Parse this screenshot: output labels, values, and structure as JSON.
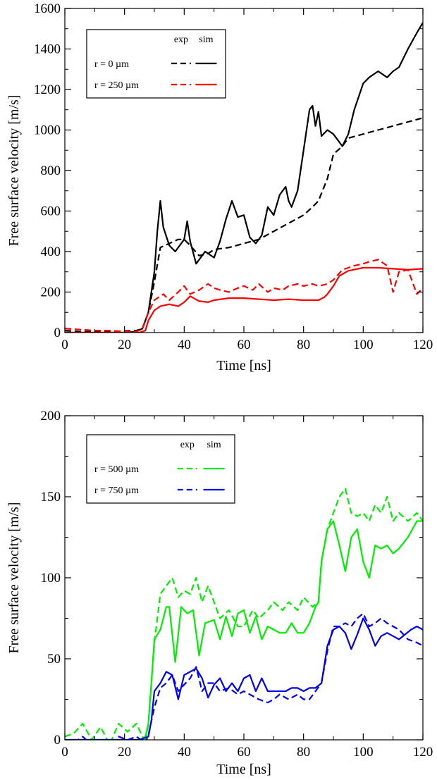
{
  "chart_data": [
    {
      "type": "line",
      "xlabel": "Time [ns]",
      "ylabel": "Free surface velocity [m/s]",
      "xlim": [
        0,
        120
      ],
      "ylim": [
        0,
        1600
      ],
      "xticks": [
        0,
        20,
        40,
        60,
        80,
        100,
        120
      ],
      "yticks": [
        0,
        200,
        400,
        600,
        800,
        1000,
        1200,
        1400,
        1600
      ],
      "grid": false,
      "legend": {
        "placement": "top-left",
        "col_headers": [
          "exp",
          "sim"
        ],
        "rows": [
          {
            "label": "r = 0 µm",
            "color": "#000000"
          },
          {
            "label": "r = 250 µm",
            "color": "#ff0000"
          }
        ]
      },
      "series": [
        {
          "name": "r = 0 µm exp",
          "color": "#000000",
          "dash": true,
          "x": [
            0,
            5,
            10,
            15,
            20,
            24,
            26,
            28,
            30,
            32,
            35,
            38,
            40,
            42,
            45,
            48,
            50,
            55,
            60,
            65,
            70,
            75,
            80,
            83,
            85,
            88,
            90,
            93,
            95,
            100,
            105,
            110,
            115,
            120
          ],
          "y": [
            10,
            5,
            5,
            5,
            8,
            10,
            20,
            100,
            250,
            420,
            440,
            460,
            460,
            430,
            380,
            390,
            410,
            420,
            440,
            460,
            500,
            540,
            580,
            620,
            650,
            760,
            880,
            920,
            960,
            980,
            1000,
            1020,
            1040,
            1060
          ]
        },
        {
          "name": "r = 0 µm sim",
          "color": "#000000",
          "dash": false,
          "x": [
            0,
            5,
            10,
            15,
            20,
            24,
            26,
            28,
            30,
            31,
            32,
            33,
            35,
            37,
            40,
            41,
            42,
            44,
            47,
            50,
            52,
            54,
            56,
            58,
            60,
            62,
            64,
            66,
            68,
            70,
            72,
            74,
            75,
            76,
            78,
            80,
            82,
            83,
            84,
            85,
            86,
            88,
            90,
            92,
            93,
            95,
            97,
            100,
            102,
            105,
            108,
            110,
            112,
            115,
            118,
            120
          ],
          "y": [
            0,
            0,
            0,
            0,
            0,
            5,
            20,
            100,
            300,
            500,
            650,
            520,
            430,
            400,
            460,
            550,
            450,
            340,
            400,
            370,
            450,
            560,
            650,
            570,
            580,
            470,
            440,
            480,
            620,
            580,
            680,
            720,
            650,
            620,
            700,
            900,
            1100,
            1120,
            1020,
            1090,
            970,
            1000,
            980,
            940,
            920,
            980,
            1100,
            1230,
            1260,
            1290,
            1260,
            1290,
            1310,
            1400,
            1480,
            1530
          ]
        },
        {
          "name": "r = 250 µm exp",
          "color": "#ff0000",
          "dash": true,
          "x": [
            0,
            5,
            10,
            15,
            20,
            24,
            26,
            28,
            30,
            33,
            35,
            38,
            40,
            42,
            45,
            48,
            50,
            52,
            55,
            58,
            60,
            63,
            65,
            68,
            70,
            73,
            75,
            78,
            80,
            83,
            85,
            88,
            90,
            93,
            95,
            97,
            100,
            102,
            105,
            108,
            110,
            112,
            115,
            118,
            120
          ],
          "y": [
            20,
            15,
            10,
            10,
            5,
            5,
            20,
            100,
            160,
            190,
            160,
            200,
            230,
            190,
            210,
            240,
            220,
            210,
            200,
            220,
            230,
            210,
            240,
            200,
            220,
            210,
            230,
            240,
            230,
            240,
            230,
            240,
            260,
            310,
            320,
            330,
            340,
            350,
            360,
            330,
            200,
            300,
            310,
            190,
            220
          ]
        },
        {
          "name": "r = 250 µm sim",
          "color": "#ff0000",
          "dash": false,
          "x": [
            0,
            20,
            25,
            27,
            28,
            30,
            32,
            35,
            38,
            40,
            42,
            45,
            48,
            50,
            55,
            60,
            65,
            70,
            75,
            80,
            85,
            87,
            88,
            90,
            92,
            95,
            100,
            105,
            110,
            115,
            120
          ],
          "y": [
            0,
            0,
            0,
            10,
            60,
            110,
            130,
            140,
            130,
            150,
            180,
            155,
            150,
            160,
            170,
            170,
            165,
            160,
            165,
            160,
            160,
            175,
            190,
            230,
            280,
            305,
            320,
            320,
            315,
            310,
            315
          ]
        }
      ]
    },
    {
      "type": "line",
      "xlabel": "Time [ns]",
      "ylabel": "Free surface velocity [m/s]",
      "xlim": [
        0,
        120
      ],
      "ylim": [
        0,
        200
      ],
      "xticks": [
        0,
        20,
        40,
        60,
        80,
        100,
        120
      ],
      "yticks": [
        0,
        50,
        100,
        150,
        200
      ],
      "grid": false,
      "legend": {
        "placement": "top-left",
        "col_headers": [
          "exp",
          "sim"
        ],
        "rows": [
          {
            "label": "r = 500 µm",
            "color": "#00ee00"
          },
          {
            "label": "r = 750 µm",
            "color": "#0000ee"
          }
        ]
      },
      "series": [
        {
          "name": "r = 500 µm exp",
          "color": "#00ee00",
          "dash": true,
          "x": [
            0,
            3,
            6,
            9,
            12,
            15,
            18,
            21,
            24,
            27,
            28,
            30,
            32,
            34,
            36,
            38,
            40,
            42,
            44,
            46,
            48,
            50,
            52,
            55,
            58,
            60,
            63,
            65,
            68,
            70,
            73,
            75,
            78,
            80,
            83,
            85,
            86,
            88,
            90,
            92,
            94,
            96,
            98,
            100,
            102,
            104,
            106,
            108,
            110,
            112,
            115,
            118,
            120
          ],
          "y": [
            2,
            4,
            10,
            0,
            8,
            -3,
            10,
            5,
            10,
            -2,
            10,
            60,
            90,
            95,
            100,
            88,
            92,
            90,
            100,
            85,
            95,
            85,
            75,
            80,
            70,
            70,
            80,
            75,
            80,
            85,
            80,
            85,
            80,
            88,
            82,
            85,
            110,
            130,
            140,
            150,
            155,
            140,
            138,
            140,
            135,
            145,
            140,
            150,
            135,
            140,
            135,
            140,
            135
          ]
        },
        {
          "name": "r = 500 µm sim",
          "color": "#00ee00",
          "dash": false,
          "x": [
            0,
            10,
            20,
            25,
            27,
            28,
            29,
            30,
            32,
            34,
            35,
            37,
            39,
            41,
            43,
            45,
            47,
            50,
            52,
            54,
            56,
            58,
            60,
            62,
            64,
            66,
            68,
            70,
            72,
            74,
            76,
            78,
            80,
            82,
            84,
            85,
            86,
            88,
            90,
            92,
            94,
            96,
            98,
            100,
            102,
            104,
            106,
            108,
            110,
            112,
            115,
            118,
            120
          ],
          "y": [
            0,
            0,
            0,
            0,
            2,
            10,
            35,
            62,
            68,
            82,
            82,
            48,
            82,
            78,
            80,
            52,
            72,
            74,
            62,
            76,
            64,
            78,
            80,
            66,
            76,
            62,
            70,
            68,
            66,
            66,
            72,
            66,
            66,
            72,
            82,
            85,
            110,
            130,
            135,
            120,
            104,
            125,
            130,
            110,
            100,
            120,
            118,
            120,
            115,
            118,
            125,
            135,
            135
          ]
        },
        {
          "name": "r = 750 µm exp",
          "color": "#0000ee",
          "dash": true,
          "x": [
            0,
            3,
            6,
            9,
            12,
            15,
            18,
            21,
            24,
            27,
            28,
            30,
            32,
            34,
            36,
            38,
            40,
            42,
            44,
            46,
            48,
            50,
            52,
            55,
            58,
            60,
            62,
            65,
            68,
            70,
            72,
            75,
            78,
            80,
            82,
            84,
            86,
            88,
            90,
            92,
            94,
            96,
            98,
            100,
            102,
            104,
            106,
            108,
            110,
            112,
            115,
            118,
            120
          ],
          "y": [
            0,
            -2,
            2,
            -3,
            0,
            -5,
            2,
            0,
            2,
            -2,
            3,
            20,
            32,
            35,
            40,
            30,
            34,
            38,
            45,
            30,
            35,
            35,
            30,
            32,
            28,
            30,
            28,
            25,
            23,
            25,
            28,
            25,
            28,
            25,
            25,
            30,
            35,
            55,
            70,
            70,
            72,
            70,
            75,
            78,
            70,
            72,
            75,
            72,
            70,
            68,
            62,
            60,
            58
          ]
        },
        {
          "name": "r = 750 µm sim",
          "color": "#0000ee",
          "dash": false,
          "x": [
            0,
            10,
            20,
            25,
            28,
            29,
            30,
            32,
            34,
            36,
            38,
            40,
            42,
            44,
            46,
            48,
            50,
            52,
            54,
            56,
            58,
            60,
            62,
            64,
            66,
            68,
            70,
            72,
            74,
            76,
            78,
            80,
            82,
            84,
            86,
            88,
            90,
            92,
            94,
            96,
            98,
            100,
            102,
            104,
            106,
            108,
            110,
            112,
            114,
            116,
            118,
            120
          ],
          "y": [
            0,
            0,
            0,
            0,
            2,
            12,
            30,
            35,
            42,
            40,
            25,
            40,
            42,
            44,
            38,
            26,
            34,
            38,
            30,
            35,
            30,
            38,
            40,
            30,
            38,
            30,
            30,
            30,
            30,
            32,
            32,
            30,
            32,
            32,
            35,
            58,
            68,
            70,
            66,
            56,
            65,
            75,
            68,
            58,
            64,
            66,
            64,
            62,
            65,
            68,
            70,
            68
          ]
        }
      ]
    }
  ]
}
